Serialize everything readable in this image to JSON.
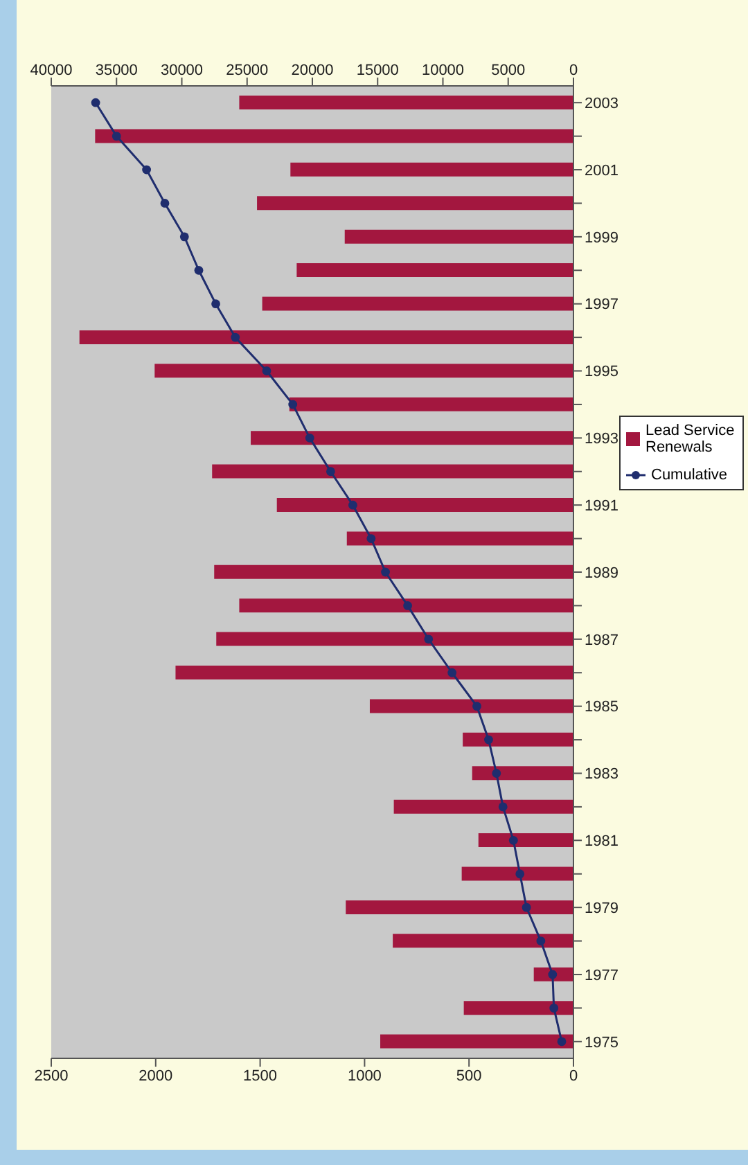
{
  "chart_data": {
    "type": "bar",
    "orientation": "horizontal",
    "categories": [
      "2003",
      null,
      "2001",
      null,
      "1999",
      null,
      "1997",
      null,
      "1995",
      null,
      "1993",
      null,
      "1991",
      null,
      "1989",
      null,
      "1987",
      null,
      "1985",
      null,
      "1983",
      null,
      "1981",
      null,
      "1979",
      null,
      "1977",
      null,
      "1975"
    ],
    "series": [
      {
        "name": "Lead Service Renewals",
        "type": "bar",
        "color": "#a3173f",
        "values": [
          1600,
          2290,
          1355,
          1515,
          1095,
          1325,
          1490,
          2365,
          2005,
          1360,
          1545,
          1730,
          1420,
          1085,
          1720,
          1600,
          1710,
          1905,
          975,
          530,
          485,
          860,
          455,
          535,
          1090,
          865,
          190,
          525,
          925
        ]
      },
      {
        "name": "Cumulative",
        "type": "line",
        "axis": "x2",
        "color": "#1f2d6e",
        "marker": "circle",
        "line_style": "solid",
        "values": [
          36600,
          35000,
          32700,
          31300,
          29800,
          28700,
          27400,
          25900,
          23500,
          21500,
          20200,
          18600,
          16900,
          15500,
          14400,
          12700,
          11100,
          9300,
          7400,
          6500,
          5900,
          5400,
          4600,
          4100,
          3600,
          2500,
          1600,
          1500,
          900
        ]
      }
    ],
    "xlim": [
      2500,
      0
    ],
    "xticks": [
      2500,
      2000,
      1500,
      1000,
      500,
      0
    ],
    "x2lim": [
      40000,
      0
    ],
    "x2ticks": [
      40000,
      35000,
      30000,
      25000,
      20000,
      15000,
      10000,
      5000,
      0
    ],
    "legend": "right"
  }
}
